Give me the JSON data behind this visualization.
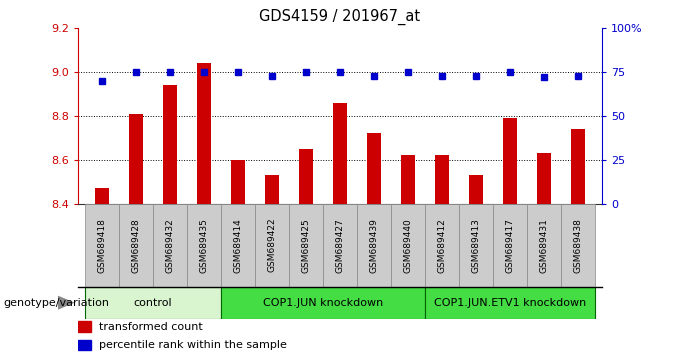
{
  "title": "GDS4159 / 201967_at",
  "samples": [
    "GSM689418",
    "GSM689428",
    "GSM689432",
    "GSM689435",
    "GSM689414",
    "GSM689422",
    "GSM689425",
    "GSM689427",
    "GSM689439",
    "GSM689440",
    "GSM689412",
    "GSM689413",
    "GSM689417",
    "GSM689431",
    "GSM689438"
  ],
  "bar_values": [
    8.47,
    8.81,
    8.94,
    9.04,
    8.6,
    8.53,
    8.65,
    8.86,
    8.72,
    8.62,
    8.62,
    8.53,
    8.79,
    8.63,
    8.74
  ],
  "dot_values": [
    70,
    75,
    75,
    75,
    75,
    73,
    75,
    75,
    73,
    75,
    73,
    73,
    75,
    72,
    73
  ],
  "bar_bottom": 8.4,
  "ylim_left": [
    8.4,
    9.2
  ],
  "ylim_right": [
    0,
    100
  ],
  "yticks_left": [
    8.4,
    8.6,
    8.8,
    9.0,
    9.2
  ],
  "yticks_right": [
    0,
    25,
    50,
    75,
    100
  ],
  "ytick_labels_right": [
    "0",
    "25",
    "50",
    "75",
    "100%"
  ],
  "grid_lines": [
    9.0,
    8.8,
    8.6
  ],
  "bar_color": "#cc0000",
  "dot_color": "#0000cc",
  "groups": [
    {
      "label": "control",
      "start": 0,
      "end": 4,
      "color": "#d8f5d0"
    },
    {
      "label": "COP1.JUN knockdown",
      "start": 4,
      "end": 10,
      "color": "#44dd44"
    },
    {
      "label": "COP1.JUN.ETV1 knockdown",
      "start": 10,
      "end": 15,
      "color": "#44dd44"
    }
  ],
  "xlabel_left": "genotype/variation",
  "legend_bar_label": "transformed count",
  "legend_dot_label": "percentile rank within the sample",
  "title_color": "#000000",
  "left_axis_color": "#cc0000",
  "right_axis_color": "#0000cc",
  "sample_box_color": "#cccccc",
  "bar_width": 0.4,
  "dot_markersize": 4
}
